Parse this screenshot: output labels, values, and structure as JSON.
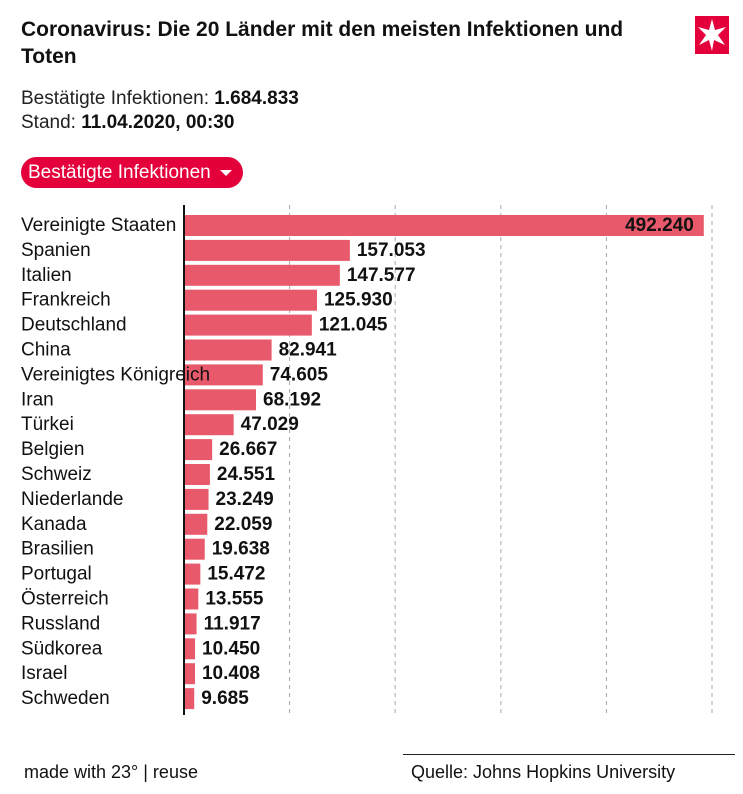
{
  "header": {
    "title": "Coronavirus: Die 20 Länder mit den meisten Infektionen und Toten",
    "confirmed_label": "Bestätigte Infektionen:",
    "confirmed_value": "1.684.833",
    "stand_label": "Stand:",
    "stand_value": "11.04.2020, 00:30",
    "logo_icon": "stern-logo-icon"
  },
  "dropdown": {
    "selected": "Bestätigte Infektionen"
  },
  "colors": {
    "bar": "#e85a6b",
    "accent": "#e4003b",
    "grid": "#aaaaaa"
  },
  "chart_data": {
    "type": "bar",
    "orientation": "horizontal",
    "categories": [
      "Vereinigte Staaten",
      "Spanien",
      "Italien",
      "Frankreich",
      "Deutschland",
      "China",
      "Vereinigtes Königreich",
      "Iran",
      "Türkei",
      "Belgien",
      "Schweiz",
      "Niederlande",
      "Kanada",
      "Brasilien",
      "Portugal",
      "Österreich",
      "Russland",
      "Südkorea",
      "Israel",
      "Schweden"
    ],
    "values": [
      492240,
      157053,
      147577,
      125930,
      121045,
      82941,
      74605,
      68192,
      47029,
      26667,
      24551,
      23249,
      22059,
      19638,
      15472,
      13555,
      11917,
      10450,
      10408,
      9685
    ],
    "value_labels": [
      "492.240",
      "157.053",
      "147.577",
      "125.930",
      "121.045",
      "82.941",
      "74.605",
      "68.192",
      "47.029",
      "26.667",
      "24.551",
      "23.249",
      "22.059",
      "19.638",
      "15.472",
      "13.555",
      "11.917",
      "10.450",
      "10.408",
      "9.685"
    ],
    "xlim": [
      0,
      500000
    ],
    "grid_values": [
      100000,
      200000,
      300000,
      400000,
      500000
    ],
    "grid": true,
    "title": "",
    "xlabel": "",
    "ylabel": ""
  },
  "footer": {
    "made_with": "made with 23° | reuse",
    "source": "Quelle: Johns Hopkins University"
  }
}
